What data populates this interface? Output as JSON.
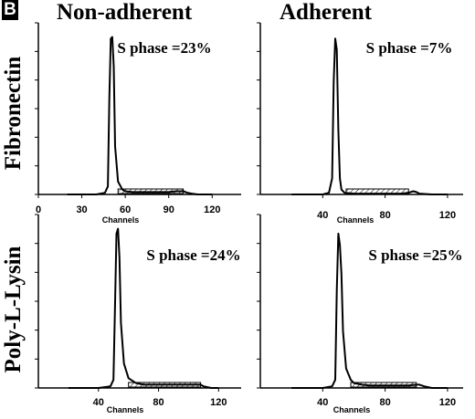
{
  "figure": {
    "panel_label": "B",
    "column_titles": [
      "Non-adherent",
      "Adherent"
    ],
    "row_titles": [
      "Fibronectin",
      "Poly-L-Lysin"
    ]
  },
  "chart_data": [
    {
      "type": "line",
      "column": "Non-adherent",
      "row": "Fibronectin",
      "annotation": "S phase =23%",
      "xlabel": "Channels",
      "xticks": [
        0,
        30,
        60,
        90,
        120
      ],
      "xlim": [
        0,
        140
      ],
      "series": [
        {
          "x": [
            20,
            40,
            46,
            48,
            49,
            50,
            51,
            52,
            53,
            55,
            58,
            60,
            65,
            70,
            80,
            90,
            95,
            100,
            103,
            106,
            110,
            120
          ],
          "y": [
            0,
            0,
            1,
            5,
            60,
            97,
            98,
            80,
            30,
            8,
            3,
            2,
            1.5,
            1.5,
            1.5,
            1.5,
            2,
            2,
            1,
            0.5,
            0,
            0
          ]
        }
      ],
      "s_phase_region": [
        55,
        100
      ]
    },
    {
      "type": "line",
      "column": "Adherent",
      "row": "Fibronectin",
      "annotation": "S phase =7%",
      "xlabel": "Channels",
      "xticks": [
        40,
        80,
        120
      ],
      "xlim": [
        0,
        130
      ],
      "series": [
        {
          "x": [
            20,
            40,
            44,
            46,
            47,
            48,
            49,
            50,
            51,
            52,
            54,
            60,
            70,
            80,
            90,
            95,
            98,
            100,
            102,
            110,
            120
          ],
          "y": [
            0,
            0,
            1,
            10,
            70,
            97,
            90,
            40,
            10,
            3,
            1,
            0.5,
            0.5,
            0.5,
            0.5,
            1,
            2,
            1.5,
            0.5,
            0,
            0
          ]
        }
      ],
      "s_phase_region": [
        55,
        95
      ]
    },
    {
      "type": "line",
      "column": "Non-adherent",
      "row": "Poly-L-Lysin",
      "annotation": "S phase =24%",
      "xlabel": "Channels",
      "xticks": [
        40,
        80,
        120
      ],
      "xlim": [
        0,
        135
      ],
      "series": [
        {
          "x": [
            20,
            40,
            48,
            50,
            51,
            52,
            53,
            54,
            55,
            57,
            60,
            65,
            70,
            80,
            90,
            100,
            105,
            108,
            110,
            115,
            120
          ],
          "y": [
            0,
            0,
            1,
            5,
            50,
            95,
            98,
            80,
            40,
            15,
            6,
            3,
            2,
            2,
            2,
            2,
            2,
            2,
            1,
            0,
            0
          ]
        }
      ],
      "s_phase_region": [
        60,
        108
      ]
    },
    {
      "type": "line",
      "column": "Adherent",
      "row": "Poly-L-Lysin",
      "annotation": "S phase =25%",
      "xlabel": "Channels",
      "xticks": [
        40,
        80,
        120
      ],
      "xlim": [
        0,
        130
      ],
      "series": [
        {
          "x": [
            20,
            40,
            46,
            48,
            49,
            50,
            51,
            52,
            53,
            55,
            58,
            60,
            65,
            70,
            80,
            90,
            95,
            100,
            102,
            105,
            110,
            120
          ],
          "y": [
            0,
            0,
            1,
            5,
            60,
            95,
            88,
            70,
            35,
            12,
            5,
            3,
            2,
            1.5,
            1.5,
            1.5,
            1.5,
            2,
            2,
            1,
            0,
            0
          ]
        }
      ],
      "s_phase_region": [
        58,
        100
      ]
    }
  ]
}
